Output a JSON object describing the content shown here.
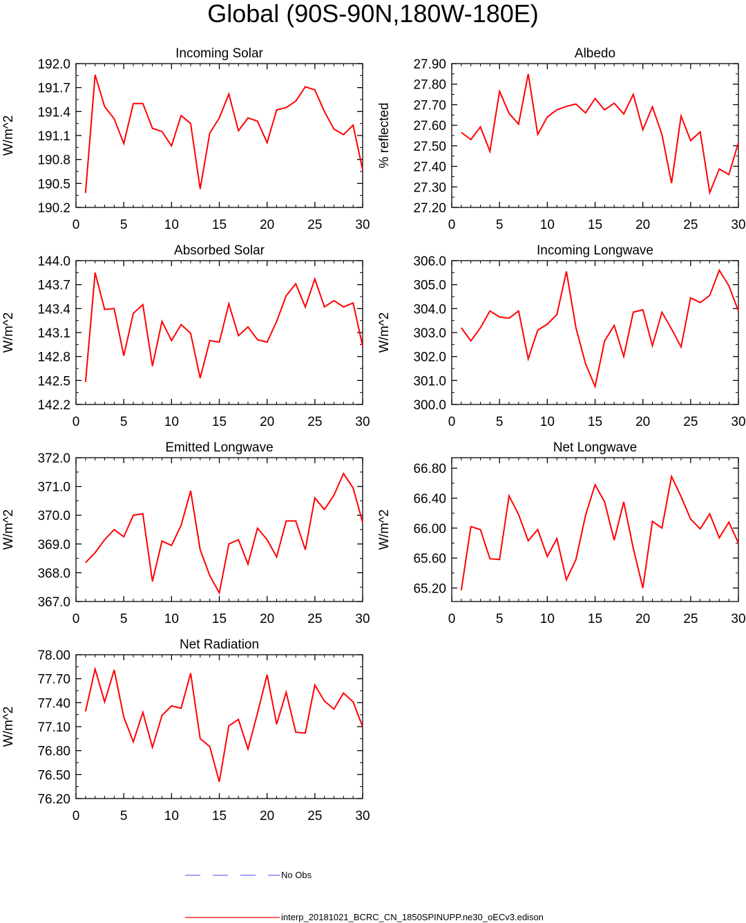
{
  "page_title": "Global (90S-90N,180W-180E)",
  "colors": {
    "model_line": "#ff0000",
    "obs_line": "#6a6aff",
    "axis": "#000000"
  },
  "legend": {
    "obs_label": "No Obs",
    "model_label": "interp_20181021_BCRC_CN_1850SPINUPP.ne30_oECv3.edison"
  },
  "chart_data": [
    {
      "type": "line",
      "title": "Incoming Solar",
      "xlabel": "",
      "ylabel": "W/m^2",
      "xlim": [
        0,
        30
      ],
      "ylim": [
        190.2,
        192.0
      ],
      "xticks": [
        0,
        5,
        10,
        15,
        20,
        25,
        30
      ],
      "yticks": [
        190.2,
        190.5,
        190.8,
        191.1,
        191.4,
        191.7,
        192.0
      ],
      "ytick_labels": [
        "190.2",
        "190.5",
        "190.8",
        "191.1",
        "191.4",
        "191.7",
        "192.0"
      ],
      "x": [
        1,
        2,
        3,
        4,
        5,
        6,
        7,
        8,
        9,
        10,
        11,
        12,
        13,
        14,
        15,
        16,
        17,
        18,
        19,
        20,
        21,
        22,
        23,
        24,
        25,
        26,
        27,
        28,
        29,
        30
      ],
      "series": [
        {
          "name": "model",
          "values": [
            190.38,
            191.86,
            191.46,
            191.31,
            191.0,
            191.5,
            191.5,
            191.19,
            191.15,
            190.97,
            191.35,
            191.25,
            190.43,
            191.13,
            191.32,
            191.62,
            191.16,
            191.32,
            191.28,
            191.01,
            191.42,
            191.45,
            191.53,
            191.71,
            191.67,
            191.4,
            191.18,
            191.11,
            191.23,
            190.67
          ]
        }
      ]
    },
    {
      "type": "line",
      "title": "Albedo",
      "xlabel": "",
      "ylabel": "% reflected",
      "xlim": [
        0,
        30
      ],
      "ylim": [
        27.2,
        27.9
      ],
      "xticks": [
        0,
        5,
        10,
        15,
        20,
        25,
        30
      ],
      "yticks": [
        27.2,
        27.3,
        27.4,
        27.5,
        27.6,
        27.7,
        27.8,
        27.9
      ],
      "ytick_labels": [
        "27.20",
        "27.30",
        "27.40",
        "27.50",
        "27.60",
        "27.70",
        "27.80",
        "27.90"
      ],
      "x": [
        1,
        2,
        3,
        4,
        5,
        6,
        7,
        8,
        9,
        10,
        11,
        12,
        13,
        14,
        15,
        16,
        17,
        18,
        19,
        20,
        21,
        22,
        23,
        24,
        25,
        26,
        27,
        28,
        29,
        30
      ],
      "series": [
        {
          "name": "model",
          "values": [
            27.565,
            27.53,
            27.592,
            27.473,
            27.765,
            27.658,
            27.605,
            27.85,
            27.555,
            27.64,
            27.675,
            27.692,
            27.703,
            27.66,
            27.73,
            27.675,
            27.707,
            27.655,
            27.75,
            27.578,
            27.69,
            27.555,
            27.318,
            27.645,
            27.525,
            27.568,
            27.272,
            27.387,
            27.36,
            27.515
          ]
        }
      ]
    },
    {
      "type": "line",
      "title": "Absorbed Solar",
      "xlabel": "",
      "ylabel": "W/m^2",
      "xlim": [
        0,
        30
      ],
      "ylim": [
        142.2,
        144.0
      ],
      "xticks": [
        0,
        5,
        10,
        15,
        20,
        25,
        30
      ],
      "yticks": [
        142.2,
        142.5,
        142.8,
        143.1,
        143.4,
        143.7,
        144.0
      ],
      "ytick_labels": [
        "142.2",
        "142.5",
        "142.8",
        "143.1",
        "143.4",
        "143.7",
        "144.0"
      ],
      "x": [
        1,
        2,
        3,
        4,
        5,
        6,
        7,
        8,
        9,
        10,
        11,
        12,
        13,
        14,
        15,
        16,
        17,
        18,
        19,
        20,
        21,
        22,
        23,
        24,
        25,
        26,
        27,
        28,
        29,
        30
      ],
      "series": [
        {
          "name": "model",
          "values": [
            142.48,
            143.85,
            143.39,
            143.4,
            142.81,
            143.34,
            143.45,
            142.68,
            143.24,
            143.0,
            143.2,
            143.09,
            142.53,
            143.0,
            142.98,
            143.46,
            143.06,
            143.17,
            143.01,
            142.98,
            143.24,
            143.56,
            143.71,
            143.42,
            143.77,
            143.42,
            143.5,
            143.42,
            143.47,
            142.93
          ]
        }
      ]
    },
    {
      "type": "line",
      "title": "Incoming Longwave",
      "xlabel": "",
      "ylabel": "W/m^2",
      "xlim": [
        0,
        30
      ],
      "ylim": [
        300.0,
        306.0
      ],
      "xticks": [
        0,
        5,
        10,
        15,
        20,
        25,
        30
      ],
      "yticks": [
        300,
        301,
        302,
        303,
        304,
        305,
        306
      ],
      "ytick_labels": [
        "300.0",
        "301.0",
        "302.0",
        "303.0",
        "304.0",
        "305.0",
        "306.0"
      ],
      "x": [
        1,
        2,
        3,
        4,
        5,
        6,
        7,
        8,
        9,
        10,
        11,
        12,
        13,
        14,
        15,
        16,
        17,
        18,
        19,
        20,
        21,
        22,
        23,
        24,
        25,
        26,
        27,
        28,
        29,
        30
      ],
      "series": [
        {
          "name": "model",
          "values": [
            303.2,
            302.65,
            303.2,
            303.9,
            303.65,
            303.6,
            303.9,
            301.9,
            303.1,
            303.35,
            303.75,
            305.55,
            303.2,
            301.7,
            300.75,
            302.65,
            303.3,
            302.0,
            303.85,
            303.95,
            302.45,
            303.85,
            303.15,
            302.4,
            304.45,
            304.25,
            304.55,
            305.6,
            304.95,
            303.9
          ]
        }
      ]
    },
    {
      "type": "line",
      "title": "Emitted Longwave",
      "xlabel": "",
      "ylabel": "W/m^2",
      "xlim": [
        0,
        30
      ],
      "ylim": [
        367.0,
        372.0
      ],
      "xticks": [
        0,
        5,
        10,
        15,
        20,
        25,
        30
      ],
      "yticks": [
        367,
        368,
        369,
        370,
        371,
        372
      ],
      "ytick_labels": [
        "367.0",
        "368.0",
        "369.0",
        "370.0",
        "371.0",
        "372.0"
      ],
      "x": [
        1,
        2,
        3,
        4,
        5,
        6,
        7,
        8,
        9,
        10,
        11,
        12,
        13,
        14,
        15,
        16,
        17,
        18,
        19,
        20,
        21,
        22,
        23,
        24,
        25,
        26,
        27,
        28,
        29,
        30
      ],
      "series": [
        {
          "name": "model",
          "values": [
            368.35,
            368.7,
            369.15,
            369.5,
            369.25,
            370.0,
            370.05,
            367.7,
            369.1,
            368.95,
            369.65,
            370.85,
            368.8,
            367.9,
            367.3,
            369.0,
            369.15,
            368.3,
            369.55,
            369.15,
            368.55,
            369.8,
            369.8,
            368.8,
            370.6,
            370.2,
            370.7,
            371.45,
            370.95,
            369.75
          ]
        }
      ]
    },
    {
      "type": "line",
      "title": "Net Longwave",
      "xlabel": "",
      "ylabel": "W/m^2",
      "xlim": [
        0,
        30
      ],
      "ylim": [
        65.02,
        66.94
      ],
      "xticks": [
        0,
        5,
        10,
        15,
        20,
        25,
        30
      ],
      "yticks": [
        65.2,
        65.6,
        66.0,
        66.4,
        66.8
      ],
      "ytick_labels": [
        "65.20",
        "65.60",
        "66.00",
        "66.40",
        "66.80"
      ],
      "x": [
        1,
        2,
        3,
        4,
        5,
        6,
        7,
        8,
        9,
        10,
        11,
        12,
        13,
        14,
        15,
        16,
        17,
        18,
        19,
        20,
        21,
        22,
        23,
        24,
        25,
        26,
        27,
        28,
        29,
        30
      ],
      "series": [
        {
          "name": "model",
          "values": [
            65.17,
            66.02,
            65.98,
            65.59,
            65.58,
            66.43,
            66.18,
            65.83,
            65.98,
            65.62,
            65.86,
            65.31,
            65.58,
            66.17,
            66.58,
            66.35,
            65.84,
            66.35,
            65.73,
            65.2,
            66.09,
            66.0,
            66.69,
            66.42,
            66.12,
            65.99,
            66.19,
            65.87,
            66.08,
            65.8
          ]
        }
      ]
    },
    {
      "type": "line",
      "title": "Net Radiation",
      "xlabel": "",
      "ylabel": "W/m^2",
      "xlim": [
        0,
        30
      ],
      "ylim": [
        76.2,
        78.0
      ],
      "xticks": [
        0,
        5,
        10,
        15,
        20,
        25,
        30
      ],
      "yticks": [
        76.2,
        76.5,
        76.8,
        77.1,
        77.4,
        77.7,
        78.0
      ],
      "ytick_labels": [
        "76.20",
        "76.50",
        "76.80",
        "77.10",
        "77.40",
        "77.70",
        "78.00"
      ],
      "x": [
        1,
        2,
        3,
        4,
        5,
        6,
        7,
        8,
        9,
        10,
        11,
        12,
        13,
        14,
        15,
        16,
        17,
        18,
        19,
        20,
        21,
        22,
        23,
        24,
        25,
        26,
        27,
        28,
        29,
        30
      ],
      "series": [
        {
          "name": "model",
          "values": [
            77.29,
            77.82,
            77.41,
            77.81,
            77.22,
            76.91,
            77.28,
            76.84,
            77.24,
            77.36,
            77.33,
            77.77,
            76.95,
            76.85,
            76.41,
            77.11,
            77.19,
            76.82,
            77.27,
            77.75,
            77.13,
            77.53,
            77.03,
            77.02,
            77.62,
            77.42,
            77.32,
            77.52,
            77.41,
            77.1
          ]
        }
      ]
    }
  ]
}
